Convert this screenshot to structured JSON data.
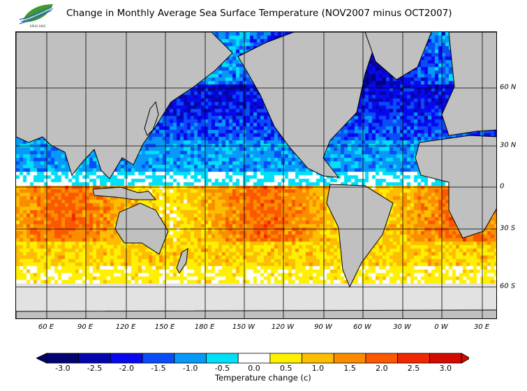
{
  "title": "Change in Monthly Average Sea Surface Temperature (NOV2007 minus OCT2007)",
  "logo": {
    "icon": "leaf-logo-icon",
    "text": "ERUG HAIS"
  },
  "map": {
    "lon_labels": [
      "60 E",
      "90 E",
      "120 E",
      "150 E",
      "180 E",
      "150 W",
      "120 W",
      "90 W",
      "60 W",
      "30 W",
      "0 W",
      "30 E"
    ],
    "lat_labels": [
      "60 N",
      "30 N",
      "0",
      "30 S",
      "60 S"
    ],
    "land_color": "#c0c0c0",
    "nodata_color": "#e2e2e2"
  },
  "colorbar": {
    "title": "Temperature change  (c)",
    "labels": [
      "-3.0",
      "-2.5",
      "-2.0",
      "-1.5",
      "-1.0",
      "-0.5",
      "0.0",
      "0.5",
      "1.0",
      "1.5",
      "2.0",
      "2.5",
      "3.0"
    ],
    "colors": [
      "#020272",
      "#0505b0",
      "#0808f0",
      "#0a4cf8",
      "#0898f8",
      "#00e0f8",
      "#ffffff",
      "#fef000",
      "#fdbd00",
      "#fb8c00",
      "#fb5800",
      "#f02800",
      "#d20a00"
    ]
  }
}
